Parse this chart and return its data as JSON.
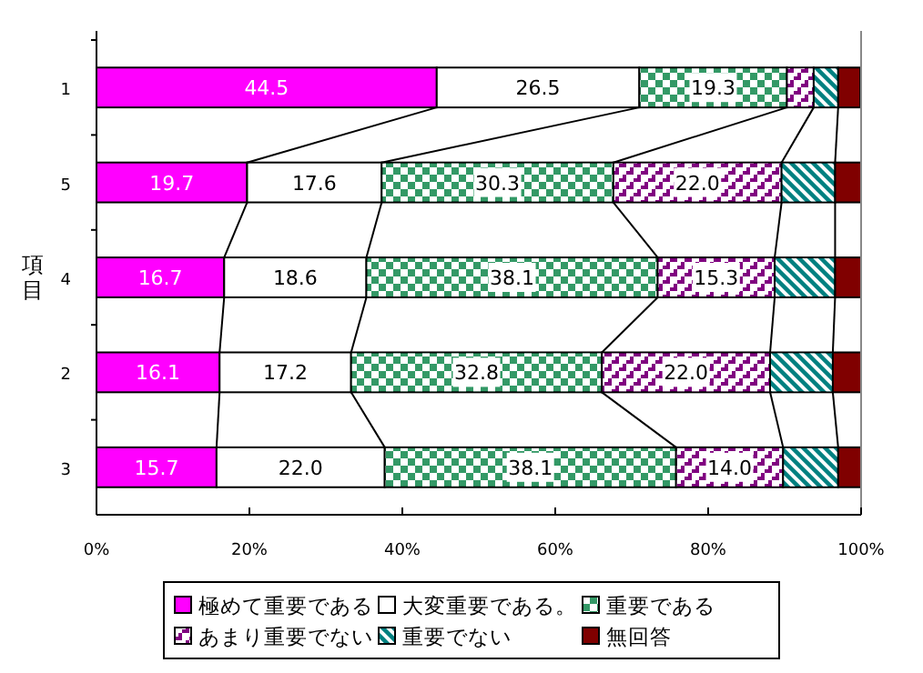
{
  "chart_data": {
    "type": "bar",
    "orientation": "horizontal",
    "stacked": true,
    "ylabel": "項目",
    "categories": [
      "1",
      "5",
      "4",
      "2",
      "3"
    ],
    "series": [
      {
        "name": "極めて重要である",
        "color": "#ff00ff",
        "values": [
          44.5,
          19.7,
          16.7,
          16.1,
          15.7
        ],
        "value_labels": [
          "44.5",
          "19.7",
          "16.7",
          "16.1",
          "15.7"
        ]
      },
      {
        "name": "大変重要である。",
        "color": "#ffffff",
        "values": [
          26.5,
          17.6,
          18.6,
          17.2,
          22.0
        ],
        "value_labels": [
          "26.5",
          "17.6",
          "18.6",
          "17.2",
          "22.0"
        ]
      },
      {
        "name": "重要である",
        "color": "#339966",
        "values": [
          19.3,
          30.3,
          38.1,
          32.8,
          38.1
        ],
        "value_labels": [
          "19.3",
          "30.3",
          "38.1",
          "32.8",
          "38.1"
        ]
      },
      {
        "name": "あまり重要でない",
        "color": "#800080",
        "values": [
          3.5,
          22.0,
          15.3,
          22.0,
          14.0
        ],
        "value_labels": [
          null,
          "22.0",
          "15.3",
          "22.0",
          "14.0"
        ]
      },
      {
        "name": "重要でない",
        "color": "#008080",
        "values": [
          3.2,
          7.0,
          7.9,
          8.2,
          7.2
        ]
      },
      {
        "name": "無回答",
        "color": "#800000",
        "values": [
          2.9,
          3.4,
          3.4,
          3.7,
          3.0
        ]
      }
    ],
    "xlim": [
      0,
      100
    ],
    "xticks": [
      {
        "value": 0,
        "label": "0%"
      },
      {
        "value": 20,
        "label": "20%"
      },
      {
        "value": 40,
        "label": "40%"
      },
      {
        "value": 60,
        "label": "60%"
      },
      {
        "value": 80,
        "label": "80%"
      },
      {
        "value": 100,
        "label": "100%"
      }
    ],
    "grid": false,
    "legend": "bottom"
  }
}
